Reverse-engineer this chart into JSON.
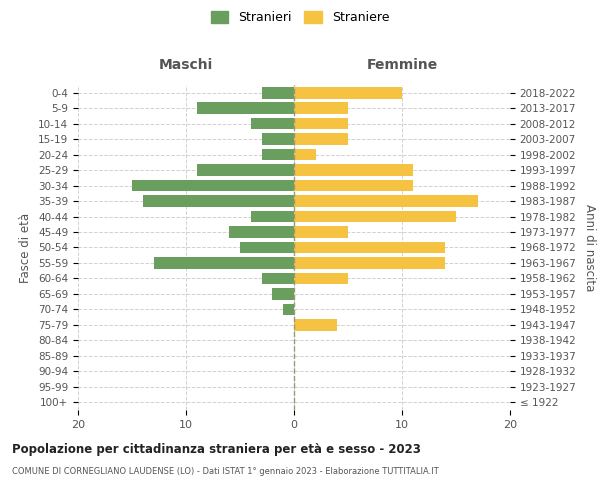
{
  "age_groups": [
    "100+",
    "95-99",
    "90-94",
    "85-89",
    "80-84",
    "75-79",
    "70-74",
    "65-69",
    "60-64",
    "55-59",
    "50-54",
    "45-49",
    "40-44",
    "35-39",
    "30-34",
    "25-29",
    "20-24",
    "15-19",
    "10-14",
    "5-9",
    "0-4"
  ],
  "birth_years": [
    "≤ 1922",
    "1923-1927",
    "1928-1932",
    "1933-1937",
    "1938-1942",
    "1943-1947",
    "1948-1952",
    "1953-1957",
    "1958-1962",
    "1963-1967",
    "1968-1972",
    "1973-1977",
    "1978-1982",
    "1983-1987",
    "1988-1992",
    "1993-1997",
    "1998-2002",
    "2003-2007",
    "2008-2012",
    "2013-2017",
    "2018-2022"
  ],
  "maschi": [
    0,
    0,
    0,
    0,
    0,
    0,
    1,
    2,
    3,
    13,
    5,
    6,
    4,
    14,
    15,
    9,
    3,
    3,
    4,
    9,
    3
  ],
  "femmine": [
    0,
    0,
    0,
    0,
    0,
    4,
    0,
    0,
    5,
    14,
    14,
    5,
    15,
    17,
    11,
    11,
    2,
    5,
    5,
    5,
    10
  ],
  "male_color": "#6a9e5e",
  "female_color": "#f5c242",
  "background_color": "#ffffff",
  "grid_color": "#cccccc",
  "title": "Popolazione per cittadinanza straniera per età e sesso - 2023",
  "subtitle": "COMUNE DI CORNEGLIANO LAUDENSE (LO) - Dati ISTAT 1° gennaio 2023 - Elaborazione TUTTITALIA.IT",
  "legend_maschi": "Stranieri",
  "legend_femmine": "Straniere",
  "xlabel_left": "Maschi",
  "xlabel_right": "Femmine",
  "ylabel_left": "Fasce di età",
  "ylabel_right": "Anni di nascita",
  "xlim": 20
}
